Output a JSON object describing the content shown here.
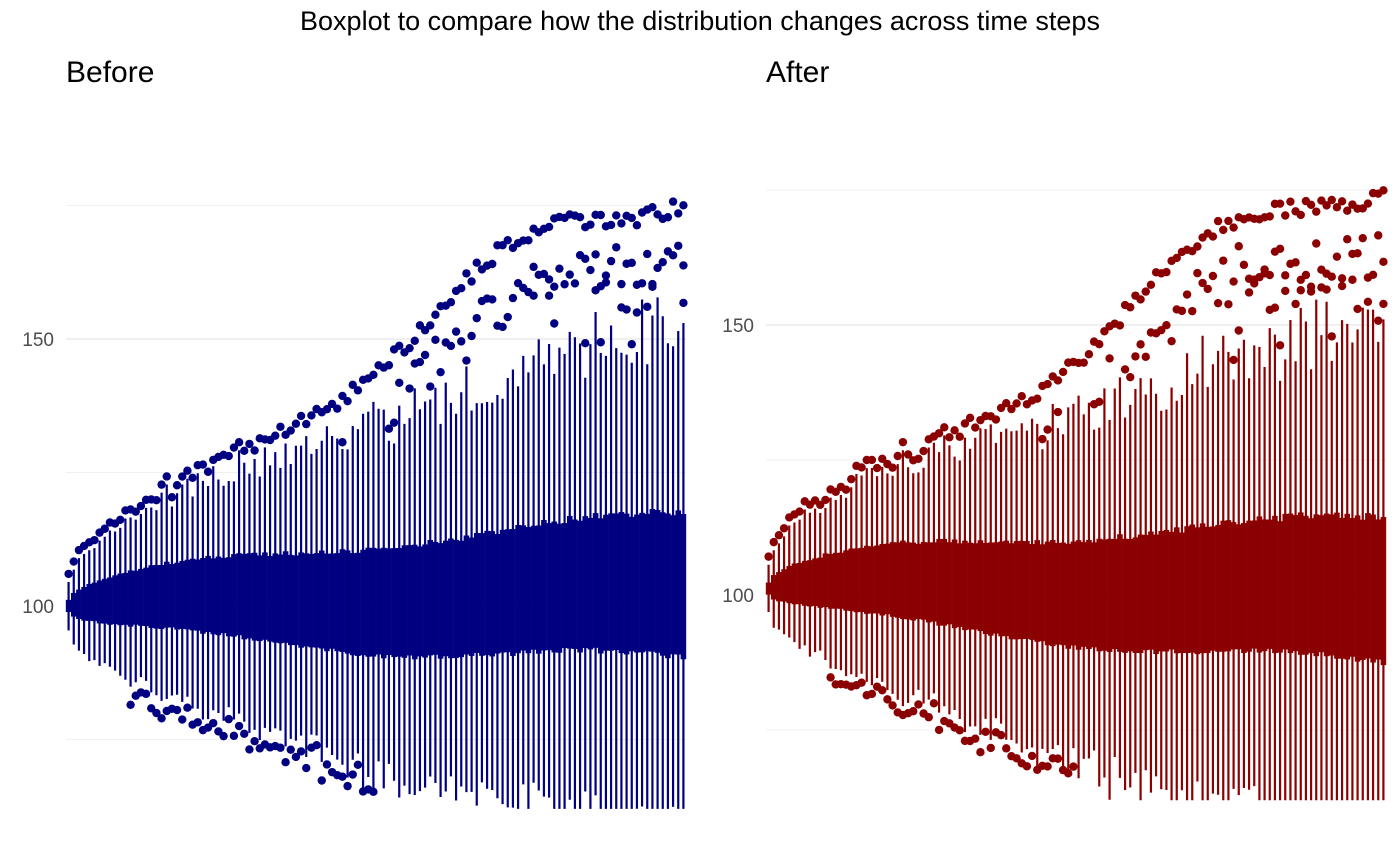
{
  "chart_data": {
    "type": "boxplot",
    "title": "Boxplot to compare how the distribution changes across time steps",
    "n_steps": 120,
    "panels": [
      {
        "title": "Before",
        "color": "#000080",
        "yticks": [
          100,
          150
        ],
        "ylim": [
          62,
          191
        ],
        "box_count": 120,
        "summary": {
          "start_median": 100,
          "end_median": 103,
          "end_q1": 90,
          "end_q3": 117,
          "max_upper_outlier": 188,
          "min_lower_outlier": 65
        }
      },
      {
        "title": "After",
        "color": "#8B0000",
        "yticks": [
          100,
          150
        ],
        "ylim": [
          62,
          191
        ],
        "box_count": 120,
        "summary": {
          "start_median": 101,
          "end_median": 98,
          "end_q1": 87,
          "end_q3": 114,
          "max_upper_outlier": 187,
          "min_lower_outlier": 66
        }
      }
    ]
  }
}
